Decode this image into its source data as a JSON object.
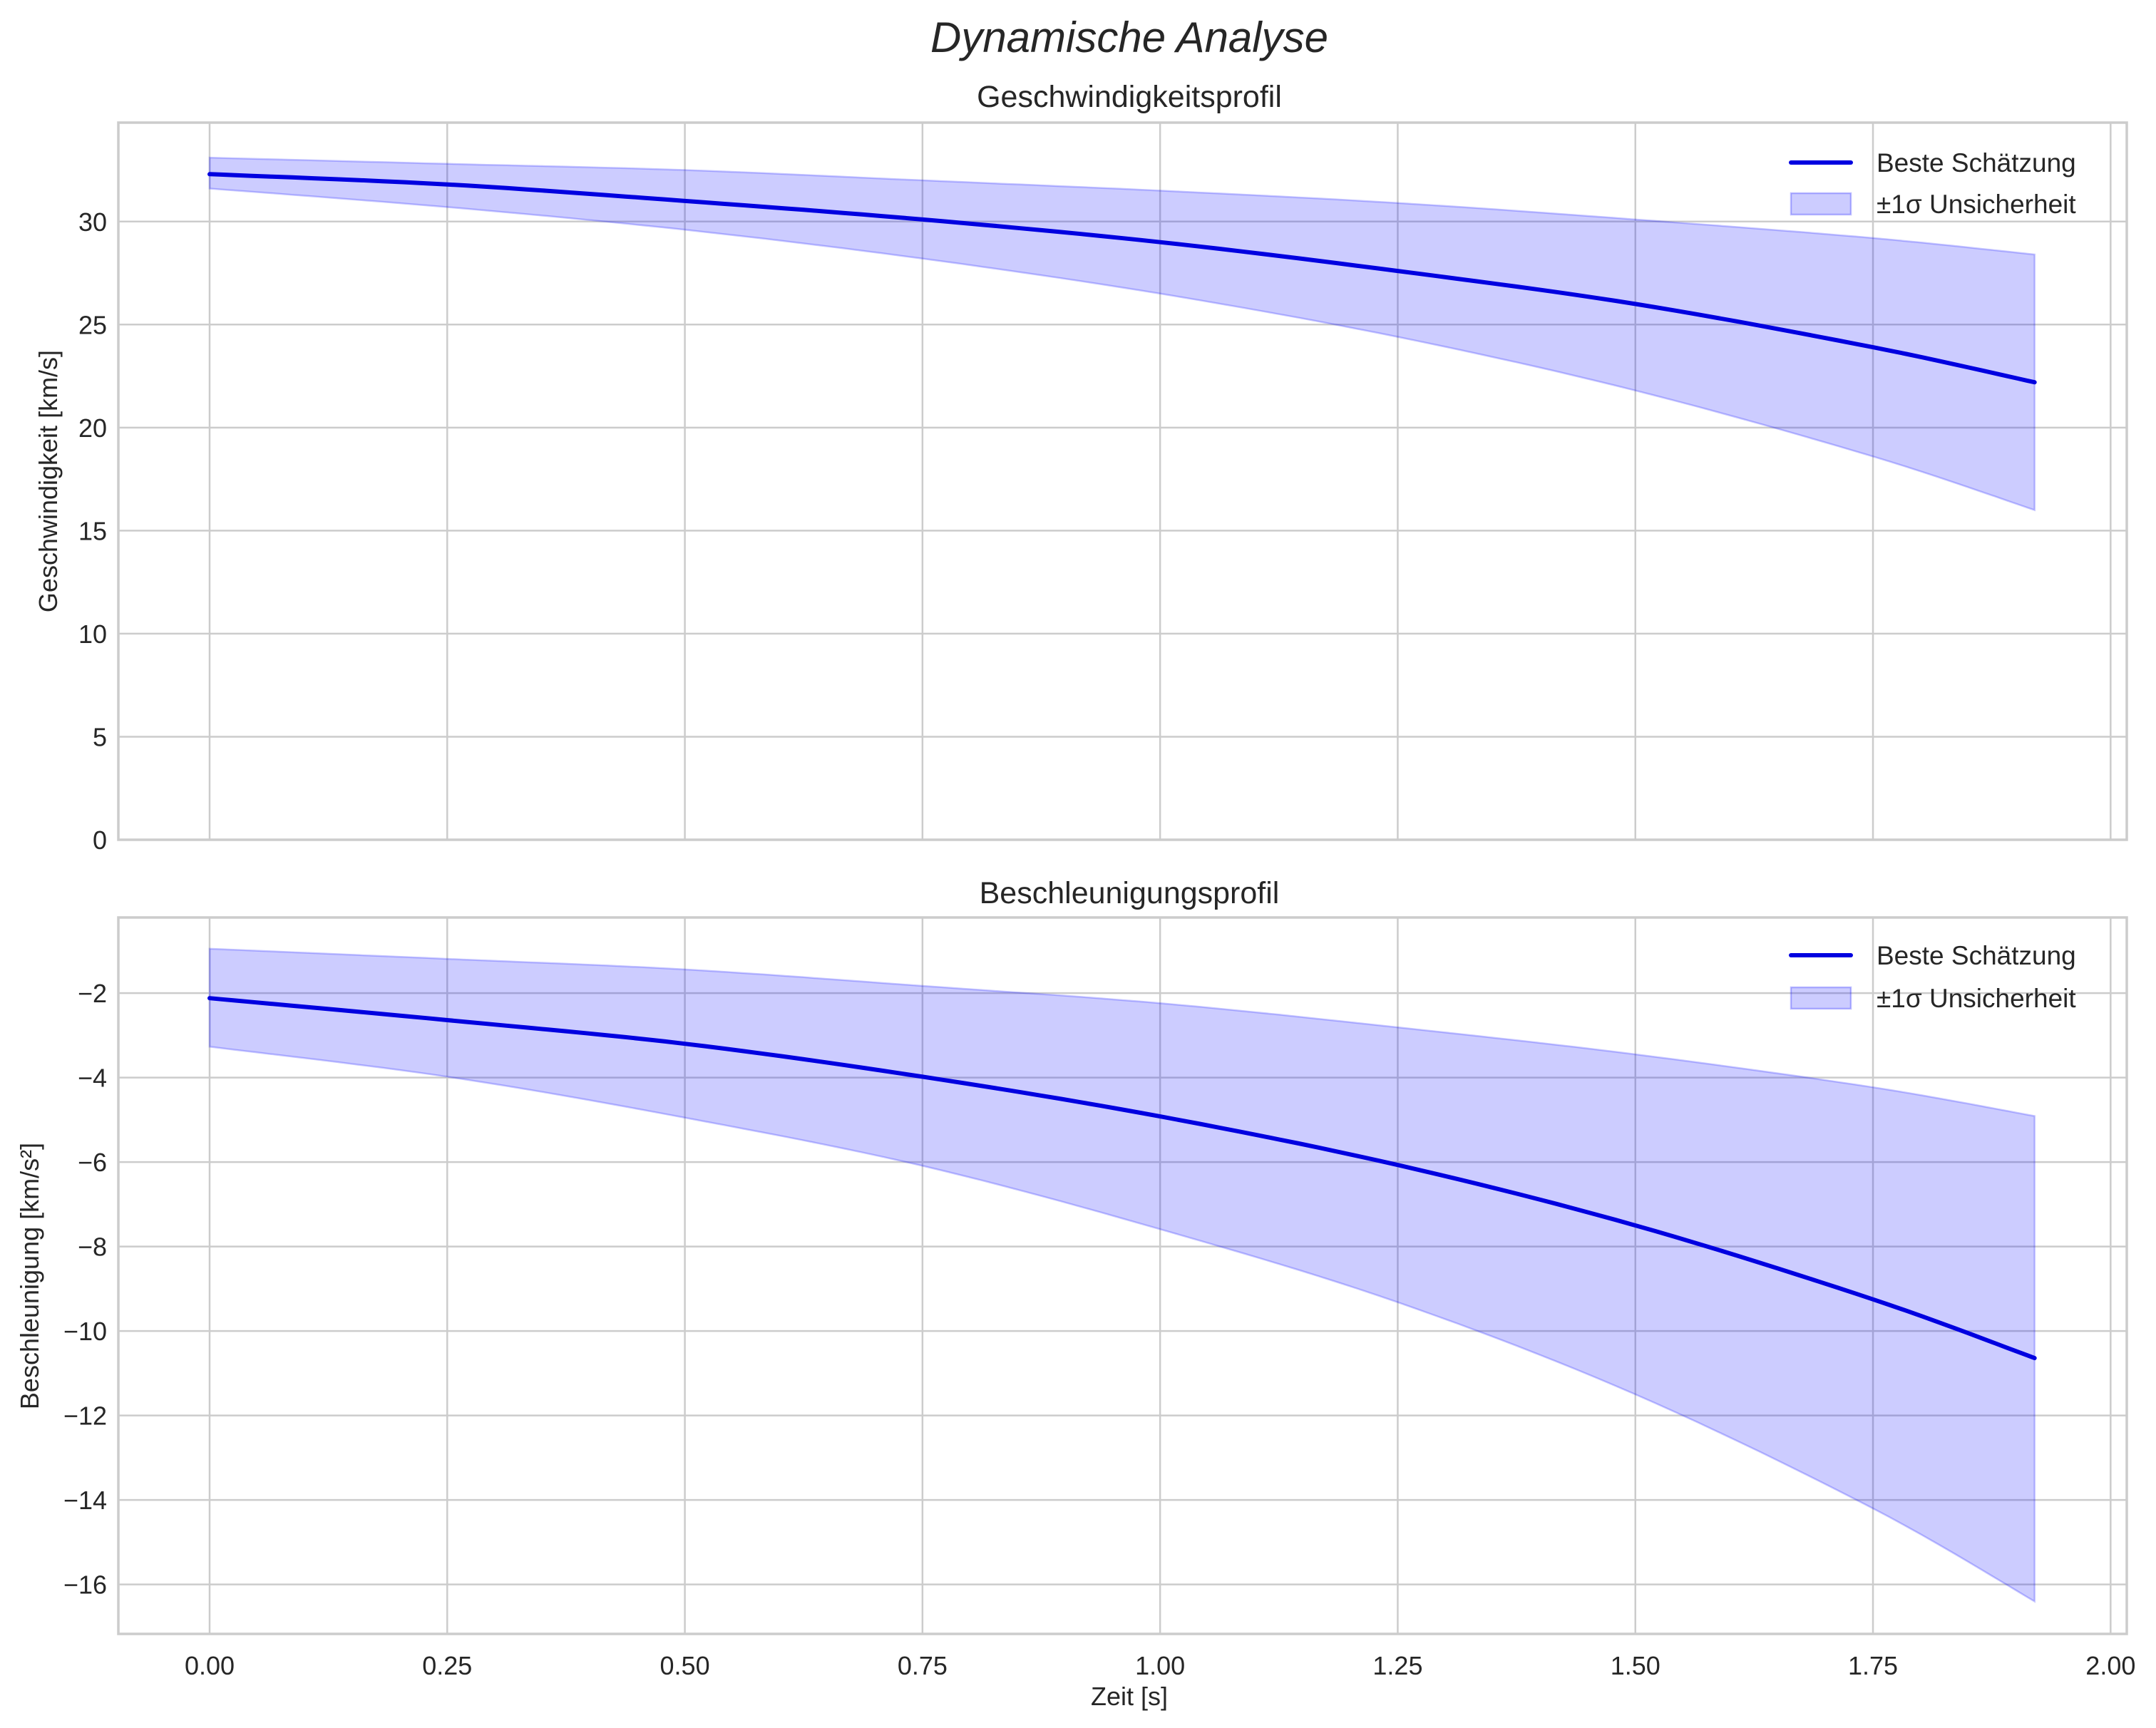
{
  "figure": {
    "title": "Dynamische Analyse",
    "xlabel": "Zeit [s]"
  },
  "colors": {
    "line": "#0000e0",
    "band_fill": "#0000ff",
    "band_alpha": 0.2,
    "grid": "#cccccc",
    "text": "#262626"
  },
  "legend": {
    "line_label": "Beste Schätzung",
    "band_label": "±1σ Unsicherheit"
  },
  "chart_data": [
    {
      "type": "line",
      "title": "Geschwindigkeitsprofil",
      "xlabel": "",
      "ylabel": "Geschwindigkeit [km/s]",
      "xlim": [
        -0.096,
        2.017
      ],
      "ylim": [
        0,
        34.8
      ],
      "xticks": [
        0.0,
        0.25,
        0.5,
        0.75,
        1.0,
        1.25,
        1.5,
        1.75,
        2.0
      ],
      "xtick_labels": [
        "0.00",
        "0.25",
        "0.50",
        "0.75",
        "1.00",
        "1.25",
        "1.50",
        "1.75",
        "2.00"
      ],
      "xtick_labels_visible": false,
      "yticks": [
        0,
        5,
        10,
        15,
        20,
        25,
        30
      ],
      "ytick_labels": [
        "0",
        "5",
        "10",
        "15",
        "20",
        "25",
        "30"
      ],
      "grid": true,
      "legend_position": "upper right",
      "x": [
        0.0,
        0.25,
        0.5,
        0.75,
        1.0,
        1.25,
        1.5,
        1.75,
        1.92
      ],
      "series": [
        {
          "name": "Beste Schätzung",
          "kind": "line",
          "values": [
            32.3,
            31.8,
            31.0,
            30.1,
            29.0,
            27.6,
            26.0,
            23.9,
            22.2
          ]
        },
        {
          "name": "±1σ Unsicherheit (oben)",
          "kind": "band_upper",
          "values": [
            33.1,
            32.8,
            32.5,
            32.0,
            31.5,
            30.9,
            30.1,
            29.2,
            28.4
          ]
        },
        {
          "name": "±1σ Unsicherheit (unten)",
          "kind": "band_lower",
          "values": [
            31.6,
            30.7,
            29.6,
            28.2,
            26.5,
            24.4,
            21.8,
            18.6,
            16.0
          ]
        }
      ]
    },
    {
      "type": "line",
      "title": "Beschleunigungsprofil",
      "xlabel": "Zeit [s]",
      "ylabel": "Beschleunigung [km/s²]",
      "xlim": [
        -0.096,
        2.017
      ],
      "ylim": [
        -17.17,
        -0.21
      ],
      "xticks": [
        0.0,
        0.25,
        0.5,
        0.75,
        1.0,
        1.25,
        1.5,
        1.75,
        2.0
      ],
      "xtick_labels": [
        "0.00",
        "0.25",
        "0.50",
        "0.75",
        "1.00",
        "1.25",
        "1.50",
        "1.75",
        "2.00"
      ],
      "xtick_labels_visible": true,
      "yticks": [
        -2,
        -4,
        -6,
        -8,
        -10,
        -12,
        -14,
        -16
      ],
      "ytick_labels": [
        "−2",
        "−4",
        "−6",
        "−8",
        "−10",
        "−12",
        "−14",
        "−16"
      ],
      "grid": true,
      "legend_position": "upper right",
      "x": [
        0.0,
        0.25,
        0.5,
        0.75,
        1.0,
        1.25,
        1.5,
        1.75,
        1.92
      ],
      "series": [
        {
          "name": "Beste Schätzung",
          "kind": "line",
          "values": [
            -2.12,
            -2.64,
            -3.2,
            -3.98,
            -4.92,
            -6.07,
            -7.5,
            -9.25,
            -10.64
          ]
        },
        {
          "name": "±1σ Unsicherheit (oben)",
          "kind": "band_upper",
          "values": [
            -0.95,
            -1.19,
            -1.44,
            -1.83,
            -2.24,
            -2.81,
            -3.45,
            -4.23,
            -4.91
          ]
        },
        {
          "name": "±1σ Unsicherheit (unten)",
          "kind": "band_lower",
          "values": [
            -3.27,
            -3.98,
            -4.95,
            -6.09,
            -7.59,
            -9.32,
            -11.5,
            -14.2,
            -16.4
          ]
        }
      ]
    }
  ]
}
